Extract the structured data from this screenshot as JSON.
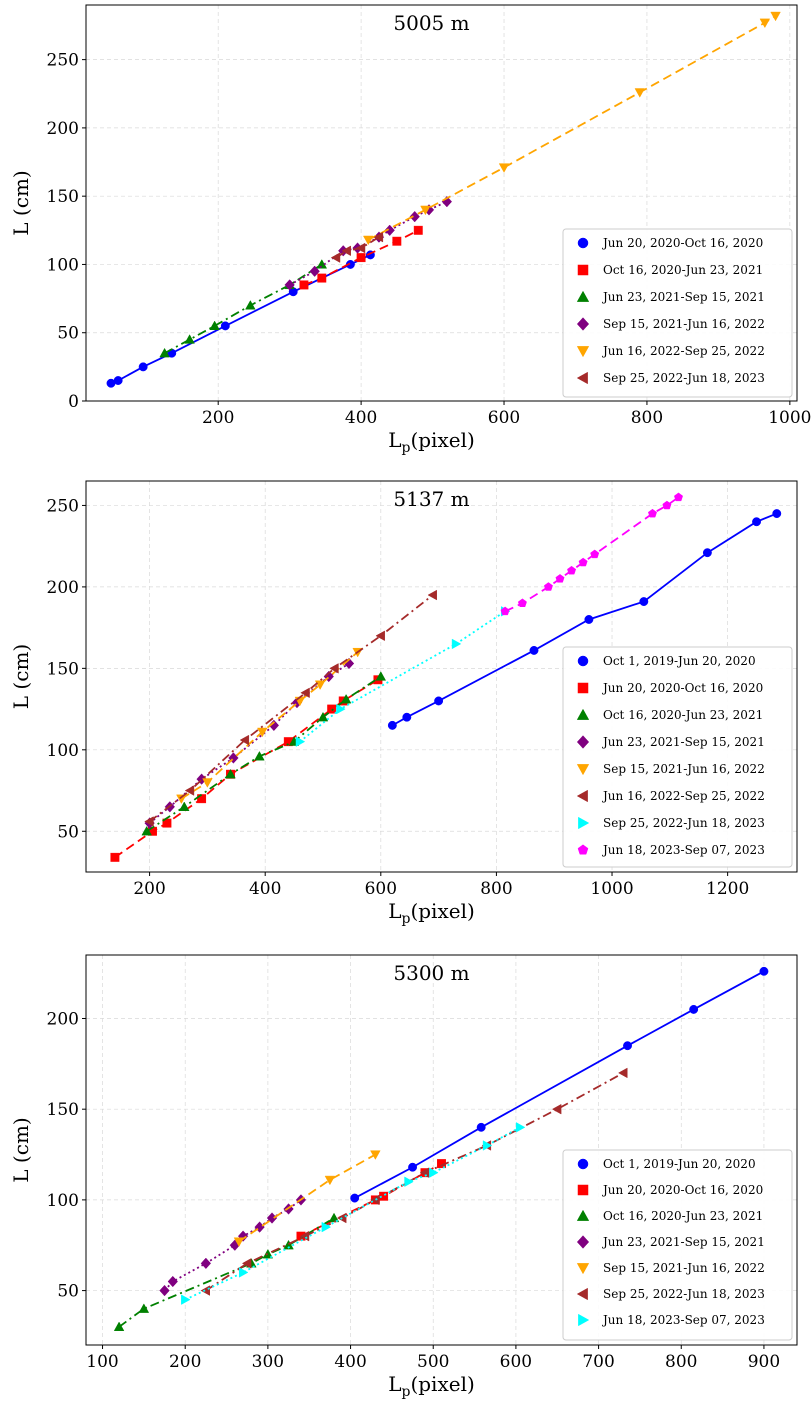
{
  "chart_data": [
    {
      "type": "scatter",
      "title": "5005 m",
      "xlabel": "L",
      "xlabel_sub": "p",
      "xlabel_suffix": "(pixel)",
      "ylabel": "L (cm)",
      "xlim": [
        15,
        1010
      ],
      "ylim": [
        0,
        290
      ],
      "xticks": [
        200,
        400,
        600,
        800,
        1000
      ],
      "yticks": [
        0,
        50,
        100,
        150,
        200,
        250
      ],
      "grid": true,
      "legend": "bottom-right",
      "series": [
        {
          "name": "Jun 20, 2020-Oct 16, 2020",
          "color": "#0000ff",
          "marker": "circle",
          "line": "solid",
          "x": [
            50,
            60,
            95,
            135,
            210,
            305,
            385,
            413
          ],
          "y": [
            13,
            15,
            25,
            35,
            55,
            80,
            100,
            107
          ]
        },
        {
          "name": "Oct 16, 2020-Jun 23, 2021",
          "color": "#ff0000",
          "marker": "square",
          "line": "dashed",
          "x": [
            320,
            345,
            400,
            450,
            480
          ],
          "y": [
            85,
            90,
            105,
            117,
            125
          ]
        },
        {
          "name": "Jun 23, 2021-Sep 15, 2021",
          "color": "#008000",
          "marker": "triangle-up",
          "line": "dashdot",
          "x": [
            125,
            160,
            195,
            245,
            300,
            345
          ],
          "y": [
            35,
            45,
            55,
            70,
            85,
            100
          ]
        },
        {
          "name": "Sep 15, 2021-Jun 16, 2022",
          "color": "#800080",
          "marker": "diamond",
          "line": "dotted",
          "x": [
            300,
            335,
            375,
            395,
            425,
            440,
            475,
            495,
            520
          ],
          "y": [
            85,
            95,
            110,
            112,
            120,
            125,
            135,
            140,
            146
          ]
        },
        {
          "name": "Jun 16, 2022-Sep 25, 2022",
          "color": "#ffa500",
          "marker": "triangle-down",
          "line": "dashed",
          "x": [
            410,
            490,
            600,
            790,
            965,
            980
          ],
          "y": [
            118,
            140,
            171,
            226,
            277,
            282
          ]
        },
        {
          "name": "Sep 25, 2022-Jun 18, 2023",
          "color": "#a52a2a",
          "marker": "triangle-left",
          "line": "dashdot",
          "x": [
            365,
            380,
            400,
            425
          ],
          "y": [
            105,
            110,
            112,
            120
          ]
        }
      ]
    },
    {
      "type": "scatter",
      "title": "5137 m",
      "xlabel": "L",
      "xlabel_sub": "p",
      "xlabel_suffix": "(pixel)",
      "ylabel": "L (cm)",
      "xlim": [
        90,
        1320
      ],
      "ylim": [
        25,
        265
      ],
      "xticks": [
        200,
        400,
        600,
        800,
        1000,
        1200
      ],
      "yticks": [
        50,
        100,
        150,
        200,
        250
      ],
      "grid": true,
      "legend": "bottom-right",
      "series": [
        {
          "name": "Oct 1, 2019-Jun 20, 2020",
          "color": "#0000ff",
          "marker": "circle",
          "line": "solid",
          "x": [
            620,
            645,
            700,
            865,
            960,
            1055,
            1165,
            1250,
            1285
          ],
          "y": [
            115,
            120,
            130,
            161,
            180,
            191,
            221,
            240,
            245
          ]
        },
        {
          "name": "Jun 20, 2020-Oct 16, 2020",
          "color": "#ff0000",
          "marker": "square",
          "line": "dashed",
          "x": [
            140,
            205,
            230,
            290,
            340,
            440,
            515,
            535,
            595
          ],
          "y": [
            34,
            50,
            55,
            70,
            85,
            105,
            125,
            130,
            143
          ]
        },
        {
          "name": "Oct 16, 2020-Jun 23, 2021",
          "color": "#008000",
          "marker": "triangle-up",
          "line": "dashdot",
          "x": [
            195,
            260,
            340,
            390,
            450,
            500,
            540,
            600
          ],
          "y": [
            50,
            65,
            85,
            96,
            105,
            120,
            131,
            145
          ]
        },
        {
          "name": "Jun 23, 2021-Sep 15, 2021",
          "color": "#800080",
          "marker": "diamond",
          "line": "dotted",
          "x": [
            200,
            235,
            290,
            345,
            415,
            455,
            510,
            545
          ],
          "y": [
            55,
            65,
            82,
            95,
            115,
            129,
            145,
            153
          ]
        },
        {
          "name": "Sep 15, 2021-Jun 16, 2022",
          "color": "#ffa500",
          "marker": "triangle-down",
          "line": "dashed",
          "x": [
            255,
            300,
            395,
            460,
            495,
            560
          ],
          "y": [
            70,
            80,
            111,
            130,
            140,
            160
          ]
        },
        {
          "name": "Jun 16, 2022-Sep 25, 2022",
          "color": "#a52a2a",
          "marker": "triangle-left",
          "line": "dashdot",
          "x": [
            200,
            270,
            365,
            470,
            520,
            600,
            690
          ],
          "y": [
            56,
            75,
            106,
            135,
            150,
            170,
            195
          ]
        },
        {
          "name": "Sep 25, 2022-Jun 18, 2023",
          "color": "#00ffff",
          "marker": "triangle-right",
          "line": "dotted",
          "x": [
            460,
            530,
            730,
            815
          ],
          "y": [
            105,
            125,
            165,
            185
          ]
        },
        {
          "name": "Jun 18, 2023-Sep 07, 2023",
          "color": "#ff00ff",
          "marker": "pentagon",
          "line": "dashed",
          "x": [
            815,
            845,
            890,
            910,
            930,
            950,
            970,
            1070,
            1095,
            1115
          ],
          "y": [
            185,
            190,
            200,
            205,
            210,
            215,
            220,
            245,
            250,
            255
          ]
        }
      ]
    },
    {
      "type": "scatter",
      "title": "5300 m",
      "xlabel": "L",
      "xlabel_sub": "p",
      "xlabel_suffix": "(pixel)",
      "ylabel": "L (cm)",
      "xlim": [
        80,
        940
      ],
      "ylim": [
        20,
        235
      ],
      "xticks": [
        100,
        200,
        300,
        400,
        500,
        600,
        700,
        800,
        900
      ],
      "yticks": [
        50,
        100,
        150,
        200
      ],
      "grid": true,
      "legend": "bottom-right",
      "series": [
        {
          "name": "Oct 1, 2019-Jun 20, 2020",
          "color": "#0000ff",
          "marker": "circle",
          "line": "solid",
          "x": [
            405,
            475,
            558,
            735,
            815,
            900
          ],
          "y": [
            101,
            118,
            140,
            185,
            205,
            226
          ]
        },
        {
          "name": "Jun 20, 2020-Oct 16, 2020",
          "color": "#ff0000",
          "marker": "square",
          "line": "dashed",
          "x": [
            340,
            430,
            440,
            490,
            510
          ],
          "y": [
            80,
            100,
            102,
            115,
            120
          ]
        },
        {
          "name": "Oct 16, 2020-Jun 23, 2021",
          "color": "#008000",
          "marker": "triangle-up",
          "line": "dashdot",
          "x": [
            120,
            150,
            280,
            300,
            325,
            380
          ],
          "y": [
            30,
            40,
            65,
            70,
            75,
            90
          ]
        },
        {
          "name": "Jun 23, 2021-Sep 15, 2021",
          "color": "#800080",
          "marker": "diamond",
          "line": "dotted",
          "x": [
            175,
            185,
            225,
            260,
            270,
            290,
            305,
            325,
            340
          ],
          "y": [
            50,
            55,
            65,
            75,
            80,
            85,
            90,
            95,
            100
          ]
        },
        {
          "name": "Sep 15, 2021-Jun 16, 2022",
          "color": "#ffa500",
          "marker": "triangle-down",
          "line": "dashed",
          "x": [
            265,
            375,
            430
          ],
          "y": [
            77,
            111,
            125
          ]
        },
        {
          "name": "Sep 25, 2022-Jun 18, 2023",
          "color": "#a52a2a",
          "marker": "triangle-left",
          "line": "dashdot",
          "x": [
            225,
            275,
            345,
            390,
            430,
            490,
            565,
            650,
            730
          ],
          "y": [
            50,
            65,
            80,
            90,
            100,
            115,
            130,
            150,
            170
          ]
        },
        {
          "name": "Jun 18, 2023-Sep 07, 2023",
          "color": "#00ffff",
          "marker": "triangle-right",
          "line": "dotted",
          "x": [
            200,
            270,
            370,
            470,
            500,
            565,
            605
          ],
          "y": [
            45,
            60,
            85,
            110,
            115,
            130,
            140
          ]
        }
      ]
    }
  ]
}
